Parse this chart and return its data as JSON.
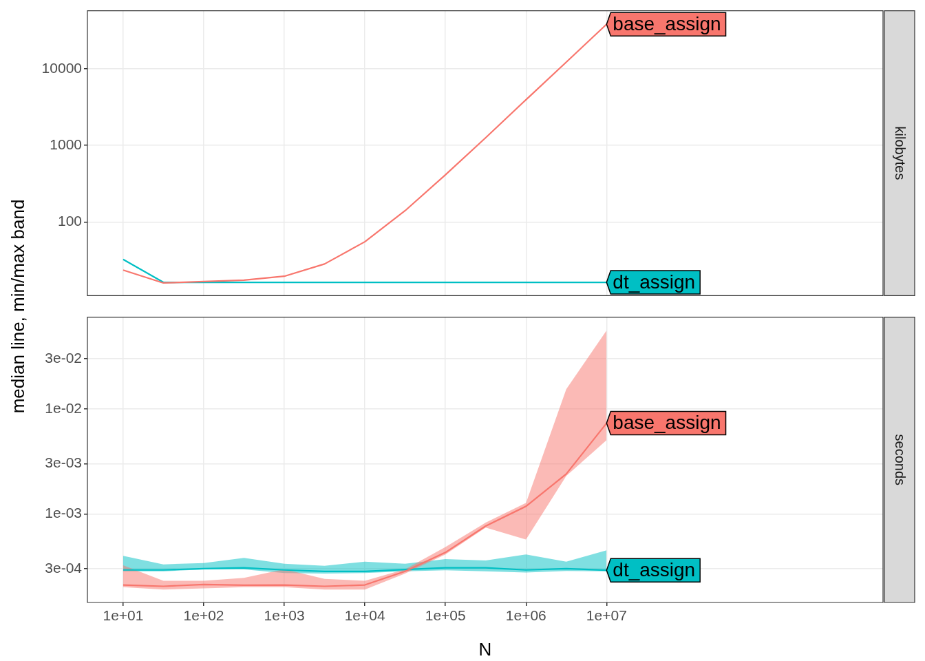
{
  "chart_data": [
    {
      "type": "line",
      "ylabel": "median line, min/max band",
      "annotations": [
        "kilobytes"
      ],
      "log": "xy",
      "grid": true,
      "tick_labels": "y",
      "x": [
        10,
        31.6,
        100,
        316,
        1000,
        3160,
        10000,
        31600,
        100000,
        316000,
        1000000,
        3160000,
        10000000
      ],
      "xlim": [
        3.6,
        27000000000
      ],
      "xticks": [
        10,
        100,
        1000,
        10000,
        100000,
        1000000,
        10000000
      ],
      "ylim": [
        11,
        57000
      ],
      "yticks": [
        100,
        1000,
        10000
      ],
      "series": [
        {
          "name": "base_assign",
          "color": "#f8766d",
          "values": [
            23.7,
            16.1,
            16.8,
            17.5,
            19.7,
            28.5,
            55.5,
            141,
            414,
            1260,
            3940,
            12200,
            38000
          ]
        },
        {
          "name": "dt_assign",
          "color": "#00bfc4",
          "values": [
            32.7,
            16.4,
            16.4,
            16.4,
            16.4,
            16.4,
            16.4,
            16.4,
            16.4,
            16.4,
            16.4,
            16.4,
            16.4
          ]
        }
      ]
    },
    {
      "type": "line",
      "xlabel": "N",
      "annotations": [
        "seconds"
      ],
      "log": "xy",
      "grid": true,
      "x": [
        10,
        31.6,
        100,
        316,
        1000,
        3160,
        10000,
        31600,
        100000,
        316000,
        1000000,
        3160000,
        10000000
      ],
      "xlim": [
        3.6,
        27000000000
      ],
      "xticks": [
        {
          "value": 10,
          "label": "1e+01"
        },
        {
          "value": 100,
          "label": "1e+02"
        },
        {
          "value": 1000,
          "label": "1e+03"
        },
        {
          "value": 10000,
          "label": "1e+04"
        },
        {
          "value": 100000,
          "label": "1e+05"
        },
        {
          "value": 1000000,
          "label": "1e+06"
        },
        {
          "value": 10000000,
          "label": "1e+07"
        }
      ],
      "ylim": [
        0.000143,
        0.075
      ],
      "yticks": [
        {
          "value": 0.0003,
          "label": "3e-04"
        },
        {
          "value": 0.001,
          "label": "1e-03"
        },
        {
          "value": 0.003,
          "label": "3e-03"
        },
        {
          "value": 0.01,
          "label": "1e-02"
        },
        {
          "value": 0.03,
          "label": "3e-02"
        }
      ],
      "series": [
        {
          "name": "base_assign",
          "color": "#f8766d",
          "values": [
            0.00021,
            0.000204,
            0.000212,
            0.000209,
            0.00021,
            0.000204,
            0.00021,
            0.000283,
            0.000429,
            0.000765,
            0.00118,
            0.0024,
            0.00732
          ],
          "lower": [
            0.0002,
            0.00019,
            0.000195,
            0.0002,
            0.0002,
            0.00019,
            0.00019,
            0.00027,
            0.00041,
            0.00074,
            0.000569,
            0.0023,
            0.00505
          ],
          "upper": [
            0.000324,
            0.00023,
            0.00023,
            0.000245,
            0.000296,
            0.00024,
            0.00023,
            0.000296,
            0.000483,
            0.000824,
            0.00127,
            0.0154,
            0.056
          ]
        },
        {
          "name": "dt_assign",
          "color": "#00bfc4",
          "values": [
            0.000292,
            0.000292,
            0.0003,
            0.000306,
            0.000292,
            0.000283,
            0.000283,
            0.000295,
            0.000306,
            0.000306,
            0.000292,
            0.0003,
            0.00029
          ],
          "lower": [
            0.000283,
            0.000283,
            0.000295,
            0.000295,
            0.000273,
            0.00027,
            0.000273,
            0.000283,
            0.00029,
            0.000283,
            0.000276,
            0.000286,
            0.000283
          ],
          "upper": [
            0.000398,
            0.00033,
            0.00034,
            0.00038,
            0.000335,
            0.00032,
            0.00035,
            0.000335,
            0.00037,
            0.00036,
            0.00041,
            0.00035,
            0.00045
          ]
        }
      ]
    }
  ]
}
